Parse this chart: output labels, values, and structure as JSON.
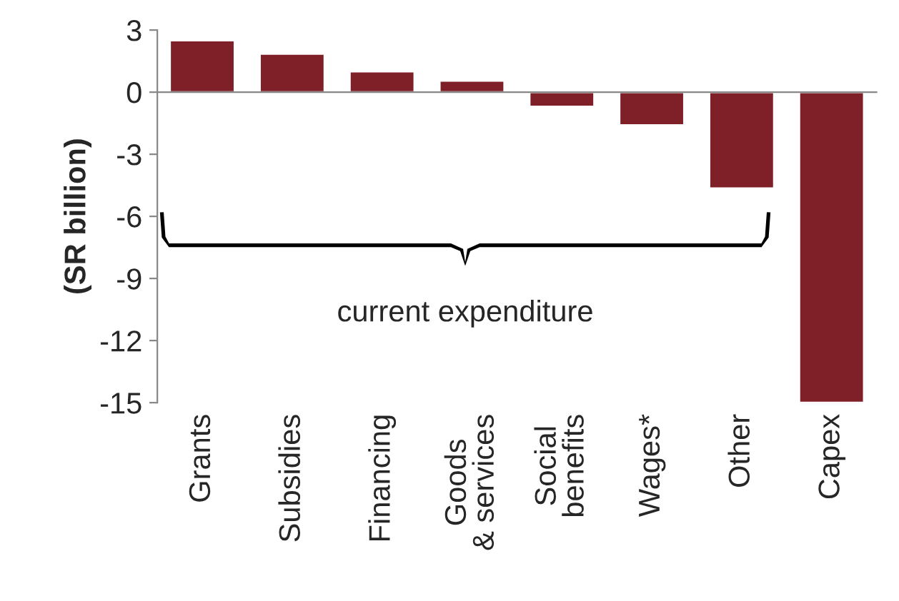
{
  "chart_data": {
    "type": "bar",
    "categories": [
      "Grants",
      "Subsidies",
      "Financing",
      "Goods\n& services",
      "Social\nbenefits",
      "Wages*",
      "Other",
      "Capex"
    ],
    "values": [
      2.5,
      1.85,
      1.0,
      0.55,
      -0.7,
      -1.6,
      -4.65,
      -15.0
    ],
    "color": "#7f1f27",
    "ylabel": "(SR billion)",
    "ylim": [
      -15,
      3
    ],
    "yticks": [
      -15,
      -12,
      -9,
      -6,
      -3,
      0,
      3
    ],
    "annotations": [
      "current expenditure"
    ],
    "legend": false
  }
}
